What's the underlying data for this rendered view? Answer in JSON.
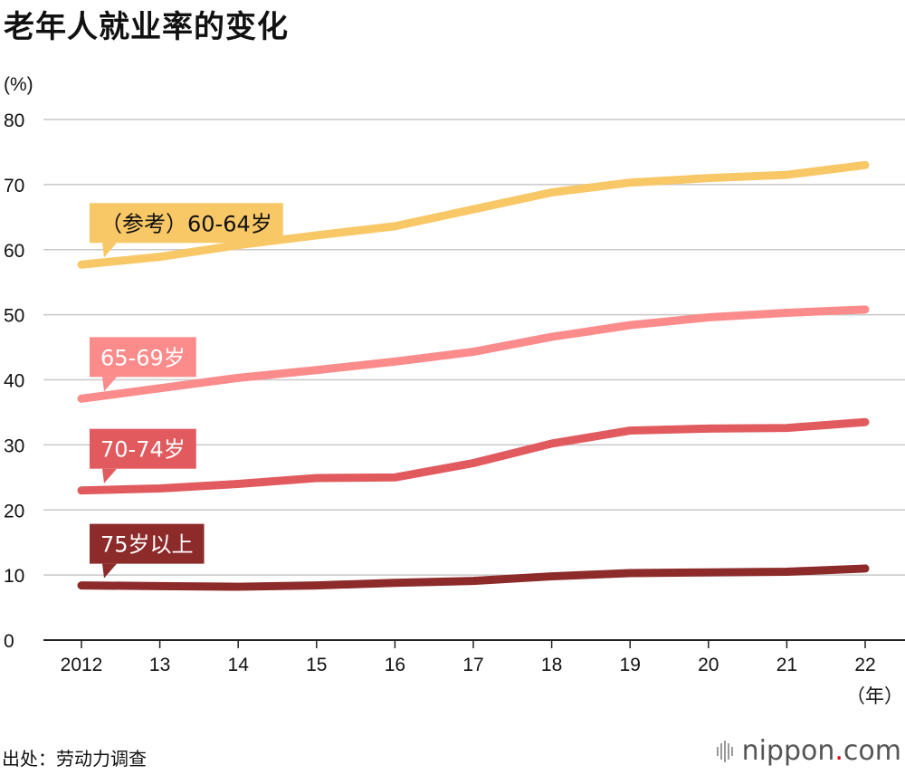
{
  "title": "老年人就业率的变化",
  "source": "出处：劳动力调查",
  "logo": {
    "main": "nippon",
    "dot": ".",
    "suffix": "com"
  },
  "chart_data": {
    "type": "line",
    "ylabel": "(%)",
    "xunit": "（年）",
    "ylim": [
      0,
      80
    ],
    "yticks": [
      0,
      10,
      20,
      30,
      40,
      50,
      60,
      70,
      80
    ],
    "categories": [
      "2012",
      "13",
      "14",
      "15",
      "16",
      "17",
      "18",
      "19",
      "20",
      "21",
      "22"
    ],
    "grid": true,
    "series": [
      {
        "name": "（参考）60-64岁",
        "color": "#f8c766",
        "labelText": "#111111",
        "values": [
          57.7,
          58.9,
          60.7,
          62.2,
          63.6,
          66.2,
          68.8,
          70.3,
          71.0,
          71.5,
          73.0
        ]
      },
      {
        "name": "65-69岁",
        "color": "#fc8b8b",
        "labelText": "#ffffff",
        "values": [
          37.1,
          38.7,
          40.3,
          41.5,
          42.8,
          44.3,
          46.6,
          48.4,
          49.6,
          50.3,
          50.8
        ]
      },
      {
        "name": "70-74岁",
        "color": "#e05a5e",
        "labelText": "#ffffff",
        "values": [
          23.0,
          23.3,
          24.0,
          24.9,
          25.0,
          27.2,
          30.2,
          32.2,
          32.5,
          32.6,
          33.5
        ]
      },
      {
        "name": "75岁以上",
        "color": "#8d2a2a",
        "labelText": "#ffffff",
        "values": [
          8.4,
          8.3,
          8.2,
          8.4,
          8.8,
          9.1,
          9.8,
          10.3,
          10.4,
          10.5,
          11.0
        ]
      }
    ]
  }
}
